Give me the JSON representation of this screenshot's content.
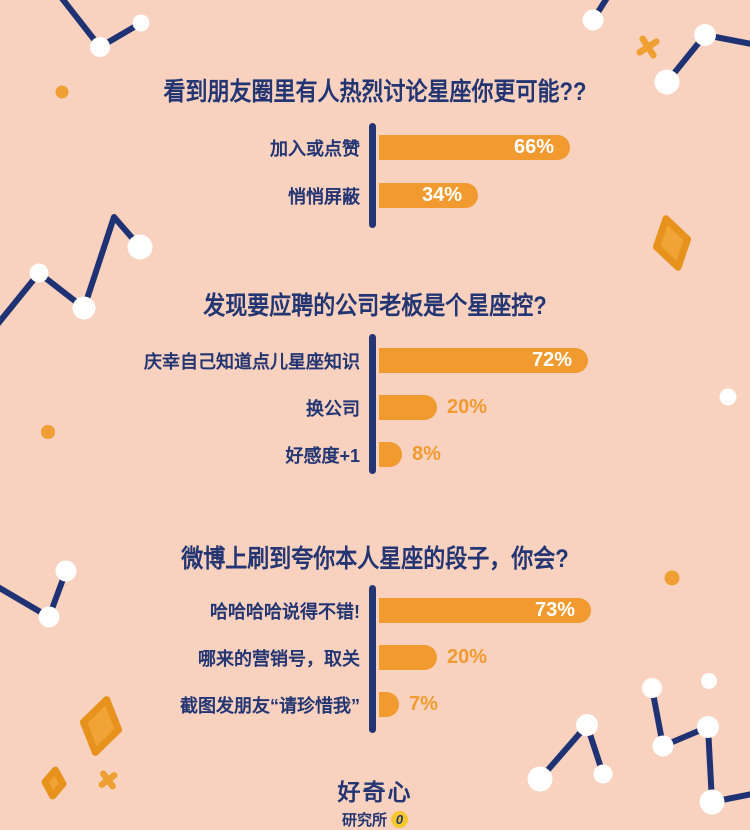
{
  "theme": {
    "background": "#F8D2BF",
    "navy": "#233673",
    "orange": "#F09A2F",
    "gold": "#F6C62E",
    "white": "#FFFFFF"
  },
  "chart_data": [
    {
      "type": "bar",
      "orientation": "horizontal",
      "title": "看到朋友圈里有人热烈讨论星座你更可能??",
      "categories": [
        "加入或点赞",
        "悄悄屏蔽"
      ],
      "values": [
        66,
        34
      ],
      "value_labels": [
        "66%",
        "34%"
      ],
      "value_label_inside": [
        true,
        true
      ],
      "unit": "%",
      "xlim": [
        0,
        100
      ],
      "bar_color": "#F09A2F",
      "grid": false,
      "legend": false
    },
    {
      "type": "bar",
      "orientation": "horizontal",
      "title": "发现要应聘的公司老板是个星座控?",
      "categories": [
        "庆幸自己知道点儿星座知识",
        "换公司",
        "好感度+1"
      ],
      "values": [
        72,
        20,
        8
      ],
      "value_labels": [
        "72%",
        "20%",
        "8%"
      ],
      "value_label_inside": [
        true,
        false,
        false
      ],
      "unit": "%",
      "xlim": [
        0,
        100
      ],
      "bar_color": "#F09A2F",
      "grid": false,
      "legend": false
    },
    {
      "type": "bar",
      "orientation": "horizontal",
      "title": "微博上刷到夸你本人星座的段子，你会?",
      "categories": [
        "哈哈哈哈说得不错!",
        "哪来的营销号，取关",
        "截图发朋友“请珍惜我”"
      ],
      "values": [
        73,
        20,
        7
      ],
      "value_labels": [
        "73%",
        "20%",
        "7%"
      ],
      "value_label_inside": [
        true,
        false,
        false
      ],
      "unit": "%",
      "xlim": [
        0,
        100
      ],
      "bar_color": "#F09A2F",
      "grid": false,
      "legend": false
    }
  ],
  "footer": {
    "brand_line1": "好奇心",
    "brand_line2": "研究所",
    "badge_glyph": "0"
  }
}
